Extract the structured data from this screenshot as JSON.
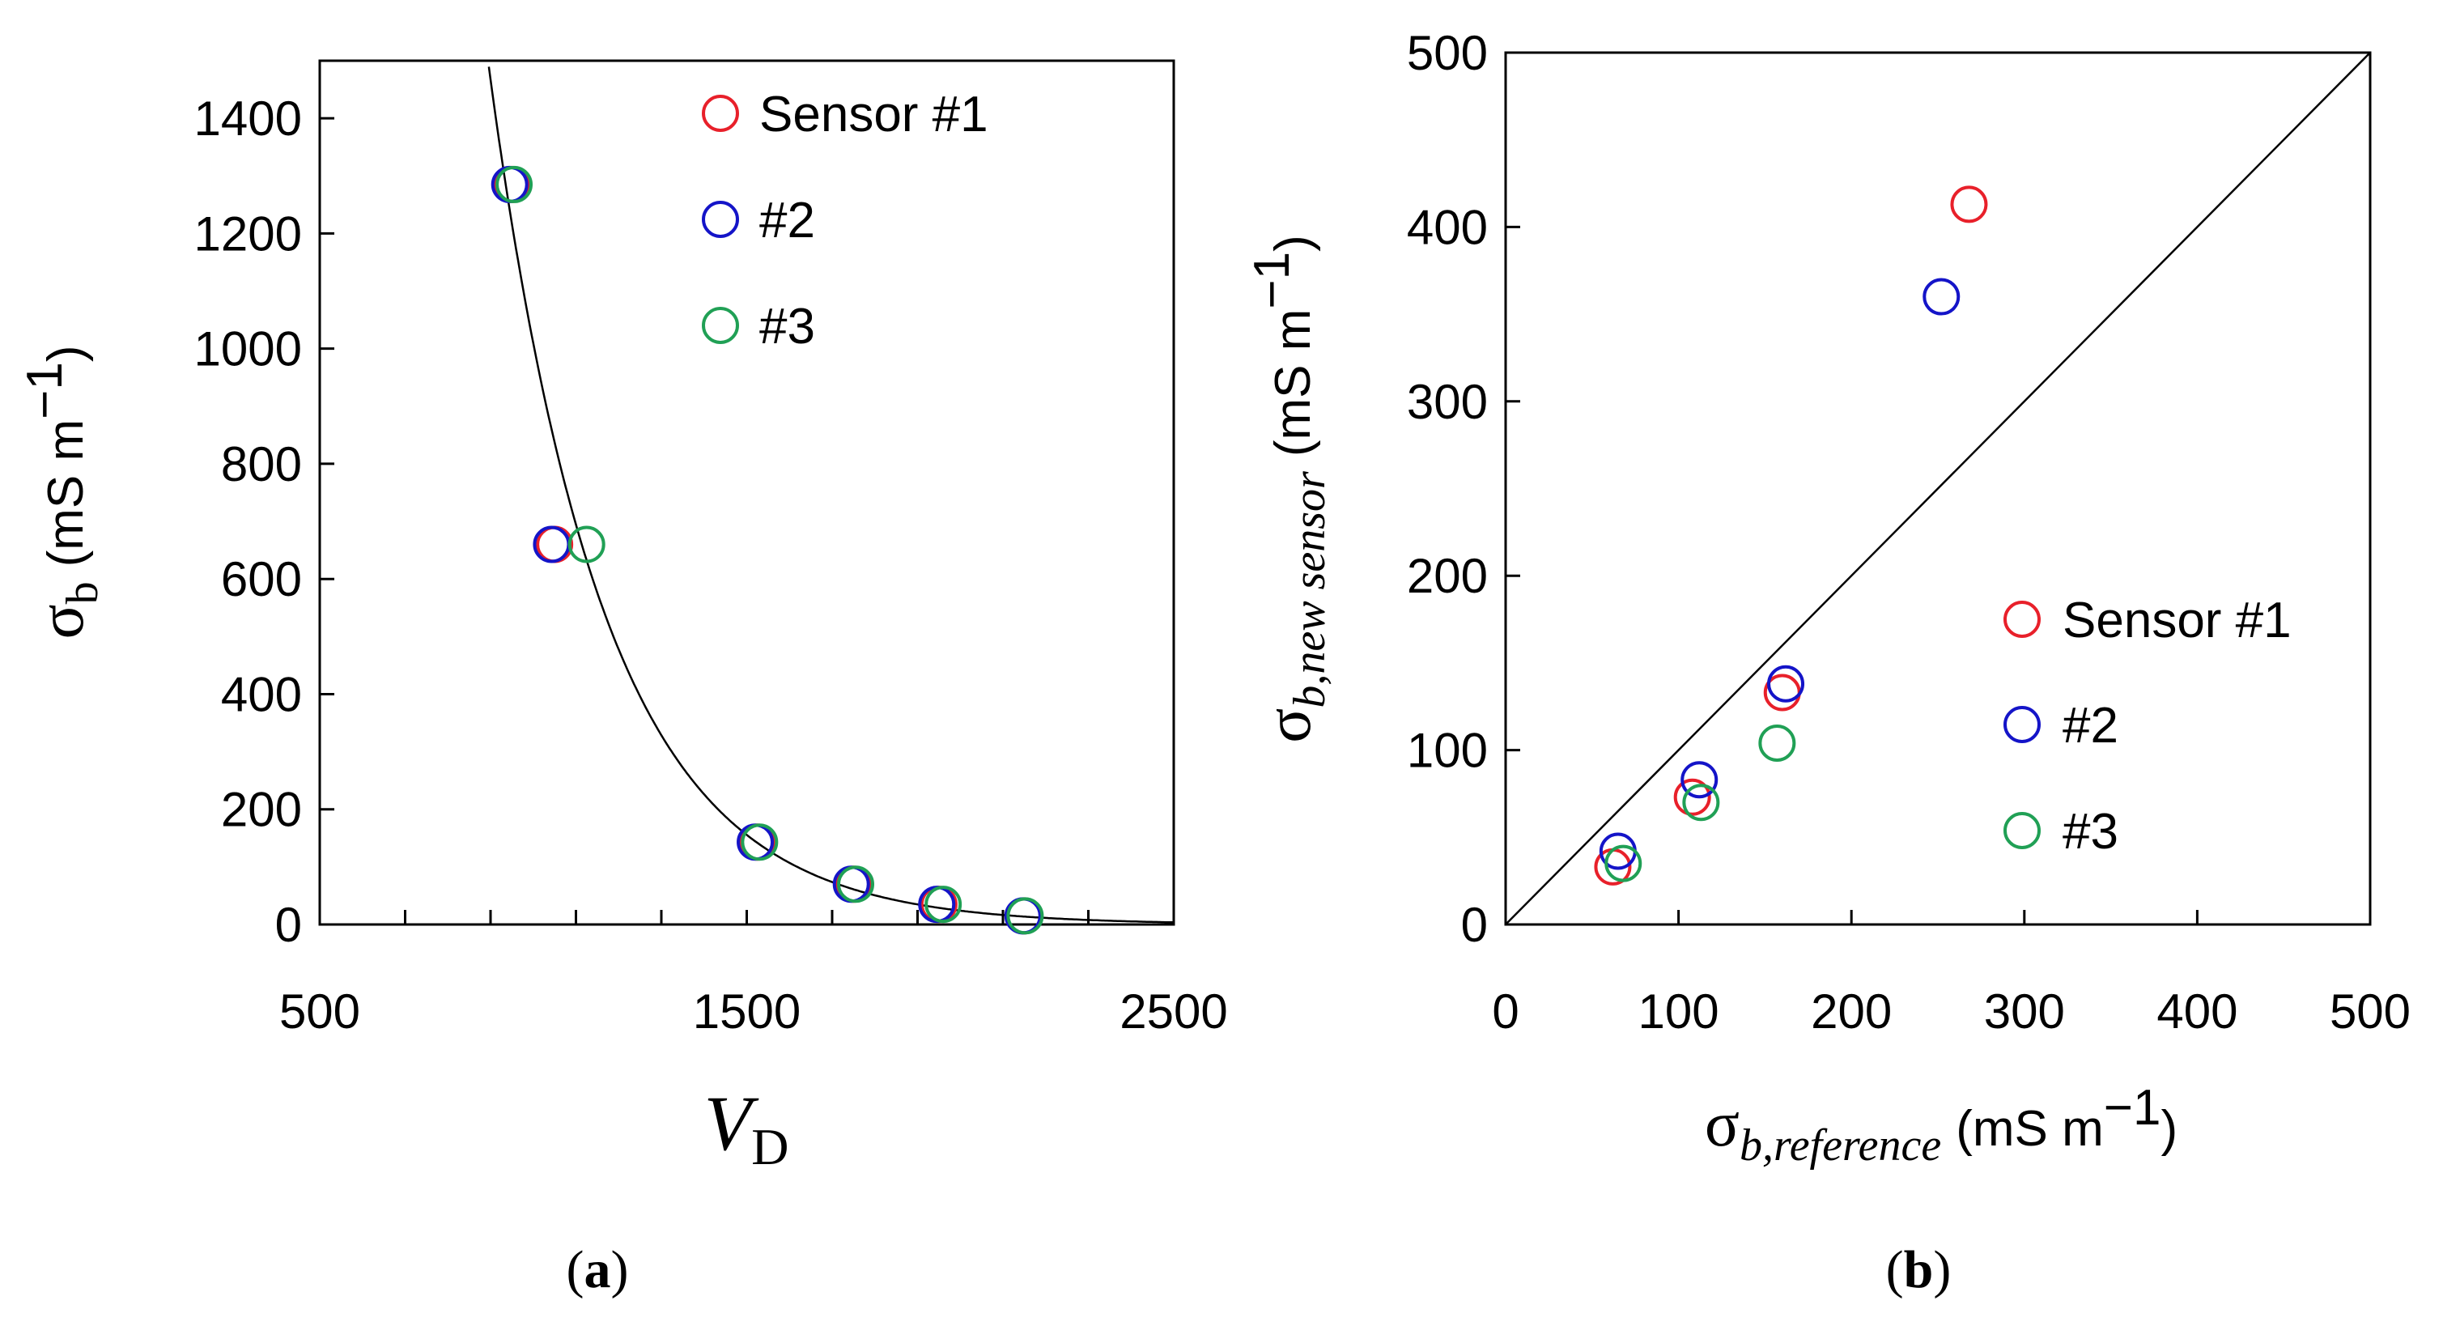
{
  "colors": {
    "sensor1": "#e8202a",
    "sensor2": "#1414c8",
    "sensor3": "#20a055",
    "axis": "#000000"
  },
  "chart_data": [
    {
      "panel": "a",
      "type": "scatter",
      "panel_label": {
        "open": "(",
        "letter": "a",
        "close": ")"
      },
      "xlabel": {
        "symbol": "V",
        "subscript": "D"
      },
      "ylabel": {
        "symbol": "σ",
        "subscript": "b",
        "unit_open": "(mS m",
        "unit_exp": "−1",
        "unit_close": ")"
      },
      "xlim": [
        500,
        2500
      ],
      "ylim": [
        0,
        1500
      ],
      "xticks": [
        500,
        1500,
        2500
      ],
      "xticks_minor": [
        700,
        900,
        1100,
        1300,
        1700,
        1900,
        2100,
        2300
      ],
      "yticks": [
        0,
        200,
        400,
        600,
        800,
        1000,
        1200,
        1400
      ],
      "grid": false,
      "legend": {
        "placement": "top-right",
        "entries": [
          "Sensor #1",
          "#2",
          "#3"
        ]
      },
      "series": [
        {
          "name": "Sensor #1",
          "color_key": "sensor1",
          "x": [
            950,
            1050,
            1525,
            1750,
            1950,
            2150
          ],
          "y": [
            1285,
            660,
            143,
            70,
            35,
            15
          ]
        },
        {
          "name": "#2",
          "color_key": "sensor2",
          "x": [
            945,
            1043,
            1520,
            1745,
            1945,
            2147
          ],
          "y": [
            1285,
            660,
            143,
            70,
            35,
            15
          ]
        },
        {
          "name": "#3",
          "color_key": "sensor3",
          "x": [
            955,
            1125,
            1530,
            1755,
            1960,
            2152
          ],
          "y": [
            1285,
            660,
            143,
            70,
            35,
            15
          ]
        }
      ],
      "fit_curve": {
        "type": "exponential",
        "a": 42500,
        "b": 0.00374,
        "description": "y = a·exp(−b·x)"
      }
    },
    {
      "panel": "b",
      "type": "scatter",
      "panel_label": {
        "open": "(",
        "letter": "b",
        "close": ")"
      },
      "xlabel": {
        "symbol": "σ",
        "subscript": "b,reference",
        "unit_open": "(mS m",
        "unit_exp": "−1",
        "unit_close": ")"
      },
      "ylabel": {
        "symbol": "σ",
        "subscript": "b,new sensor",
        "unit_open": "(mS m",
        "unit_exp": "−1",
        "unit_close": ")"
      },
      "xlim": [
        0,
        500
      ],
      "ylim": [
        0,
        500
      ],
      "xticks": [
        0,
        100,
        200,
        300,
        400,
        500
      ],
      "yticks": [
        0,
        100,
        200,
        300,
        400,
        500
      ],
      "grid": false,
      "reference_line": "1:1",
      "legend": {
        "placement": "bottom-right",
        "entries": [
          "Sensor #1",
          "#2",
          "#3"
        ]
      },
      "series": [
        {
          "name": "Sensor #1",
          "color_key": "sensor1",
          "x": [
            62,
            108,
            160,
            268
          ],
          "y": [
            33,
            73,
            133,
            413
          ]
        },
        {
          "name": "#2",
          "color_key": "sensor2",
          "x": [
            65,
            112,
            162,
            252
          ],
          "y": [
            42,
            83,
            138,
            360
          ]
        },
        {
          "name": "#3",
          "color_key": "sensor3",
          "x": [
            68,
            113,
            157
          ],
          "y": [
            35,
            70,
            104
          ]
        }
      ]
    }
  ]
}
